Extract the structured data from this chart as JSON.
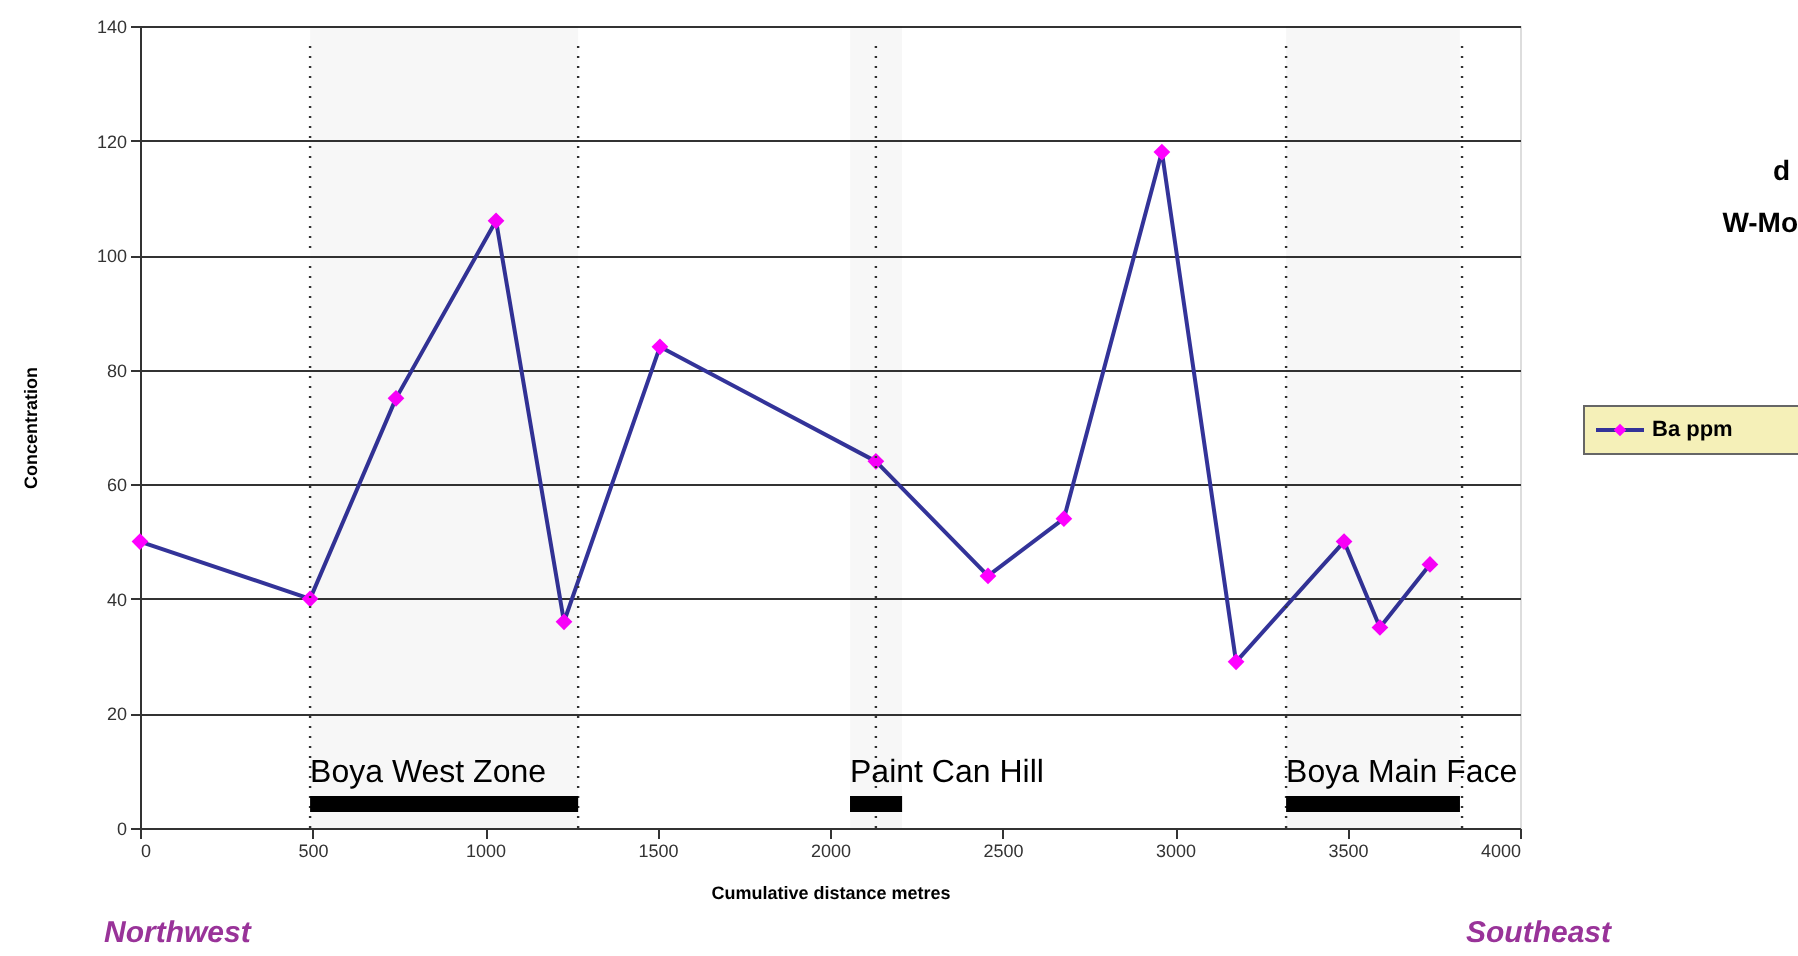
{
  "chart_data": {
    "type": "line",
    "xlabel": "Cumulative distance metres",
    "ylabel": "Concentration",
    "x": [
      0,
      493,
      742,
      1032,
      1229,
      1507,
      2133,
      2458,
      2678,
      2962,
      3177,
      3490,
      3594,
      3739
    ],
    "series": [
      {
        "name": "Ba ppm",
        "color": "#333399",
        "values": [
          50,
          40,
          75,
          106,
          36,
          84,
          64,
          44,
          54,
          118,
          29,
          50,
          35,
          46
        ]
      }
    ],
    "xlim": [
      0,
      4000
    ],
    "xticks": [
      0,
      500,
      1000,
      1500,
      2000,
      2500,
      3000,
      3500,
      4000
    ],
    "ylim": [
      0,
      140
    ],
    "yticks": [
      0,
      20,
      40,
      60,
      80,
      100,
      120,
      140
    ],
    "grid": "y",
    "legend": "right",
    "marker": "diamond",
    "line_style": "solid",
    "ref_lines": [
      {
        "axis": "x",
        "value": 493,
        "line_style": "dotted"
      },
      {
        "axis": "x",
        "value": 1270,
        "line_style": "dotted"
      },
      {
        "axis": "x",
        "value": 2133,
        "line_style": "dotted"
      },
      {
        "axis": "x",
        "value": 3322,
        "line_style": "dotted"
      },
      {
        "axis": "x",
        "value": 3832,
        "line_style": "dotted"
      }
    ],
    "bands": [
      {
        "axis": "x",
        "from": 493,
        "to": 1270,
        "label": "Boya West Zone",
        "color": "#000000"
      },
      {
        "axis": "x",
        "from": 2058,
        "to": 2209,
        "label": "Paint Can Hill",
        "color": "#000000"
      },
      {
        "axis": "x",
        "from": 3322,
        "to": 3826,
        "label": "Boya Main Face",
        "color": "#000000"
      }
    ],
    "annotations": [
      "Northwest",
      "Southeast",
      "d",
      "W-Mo"
    ]
  }
}
